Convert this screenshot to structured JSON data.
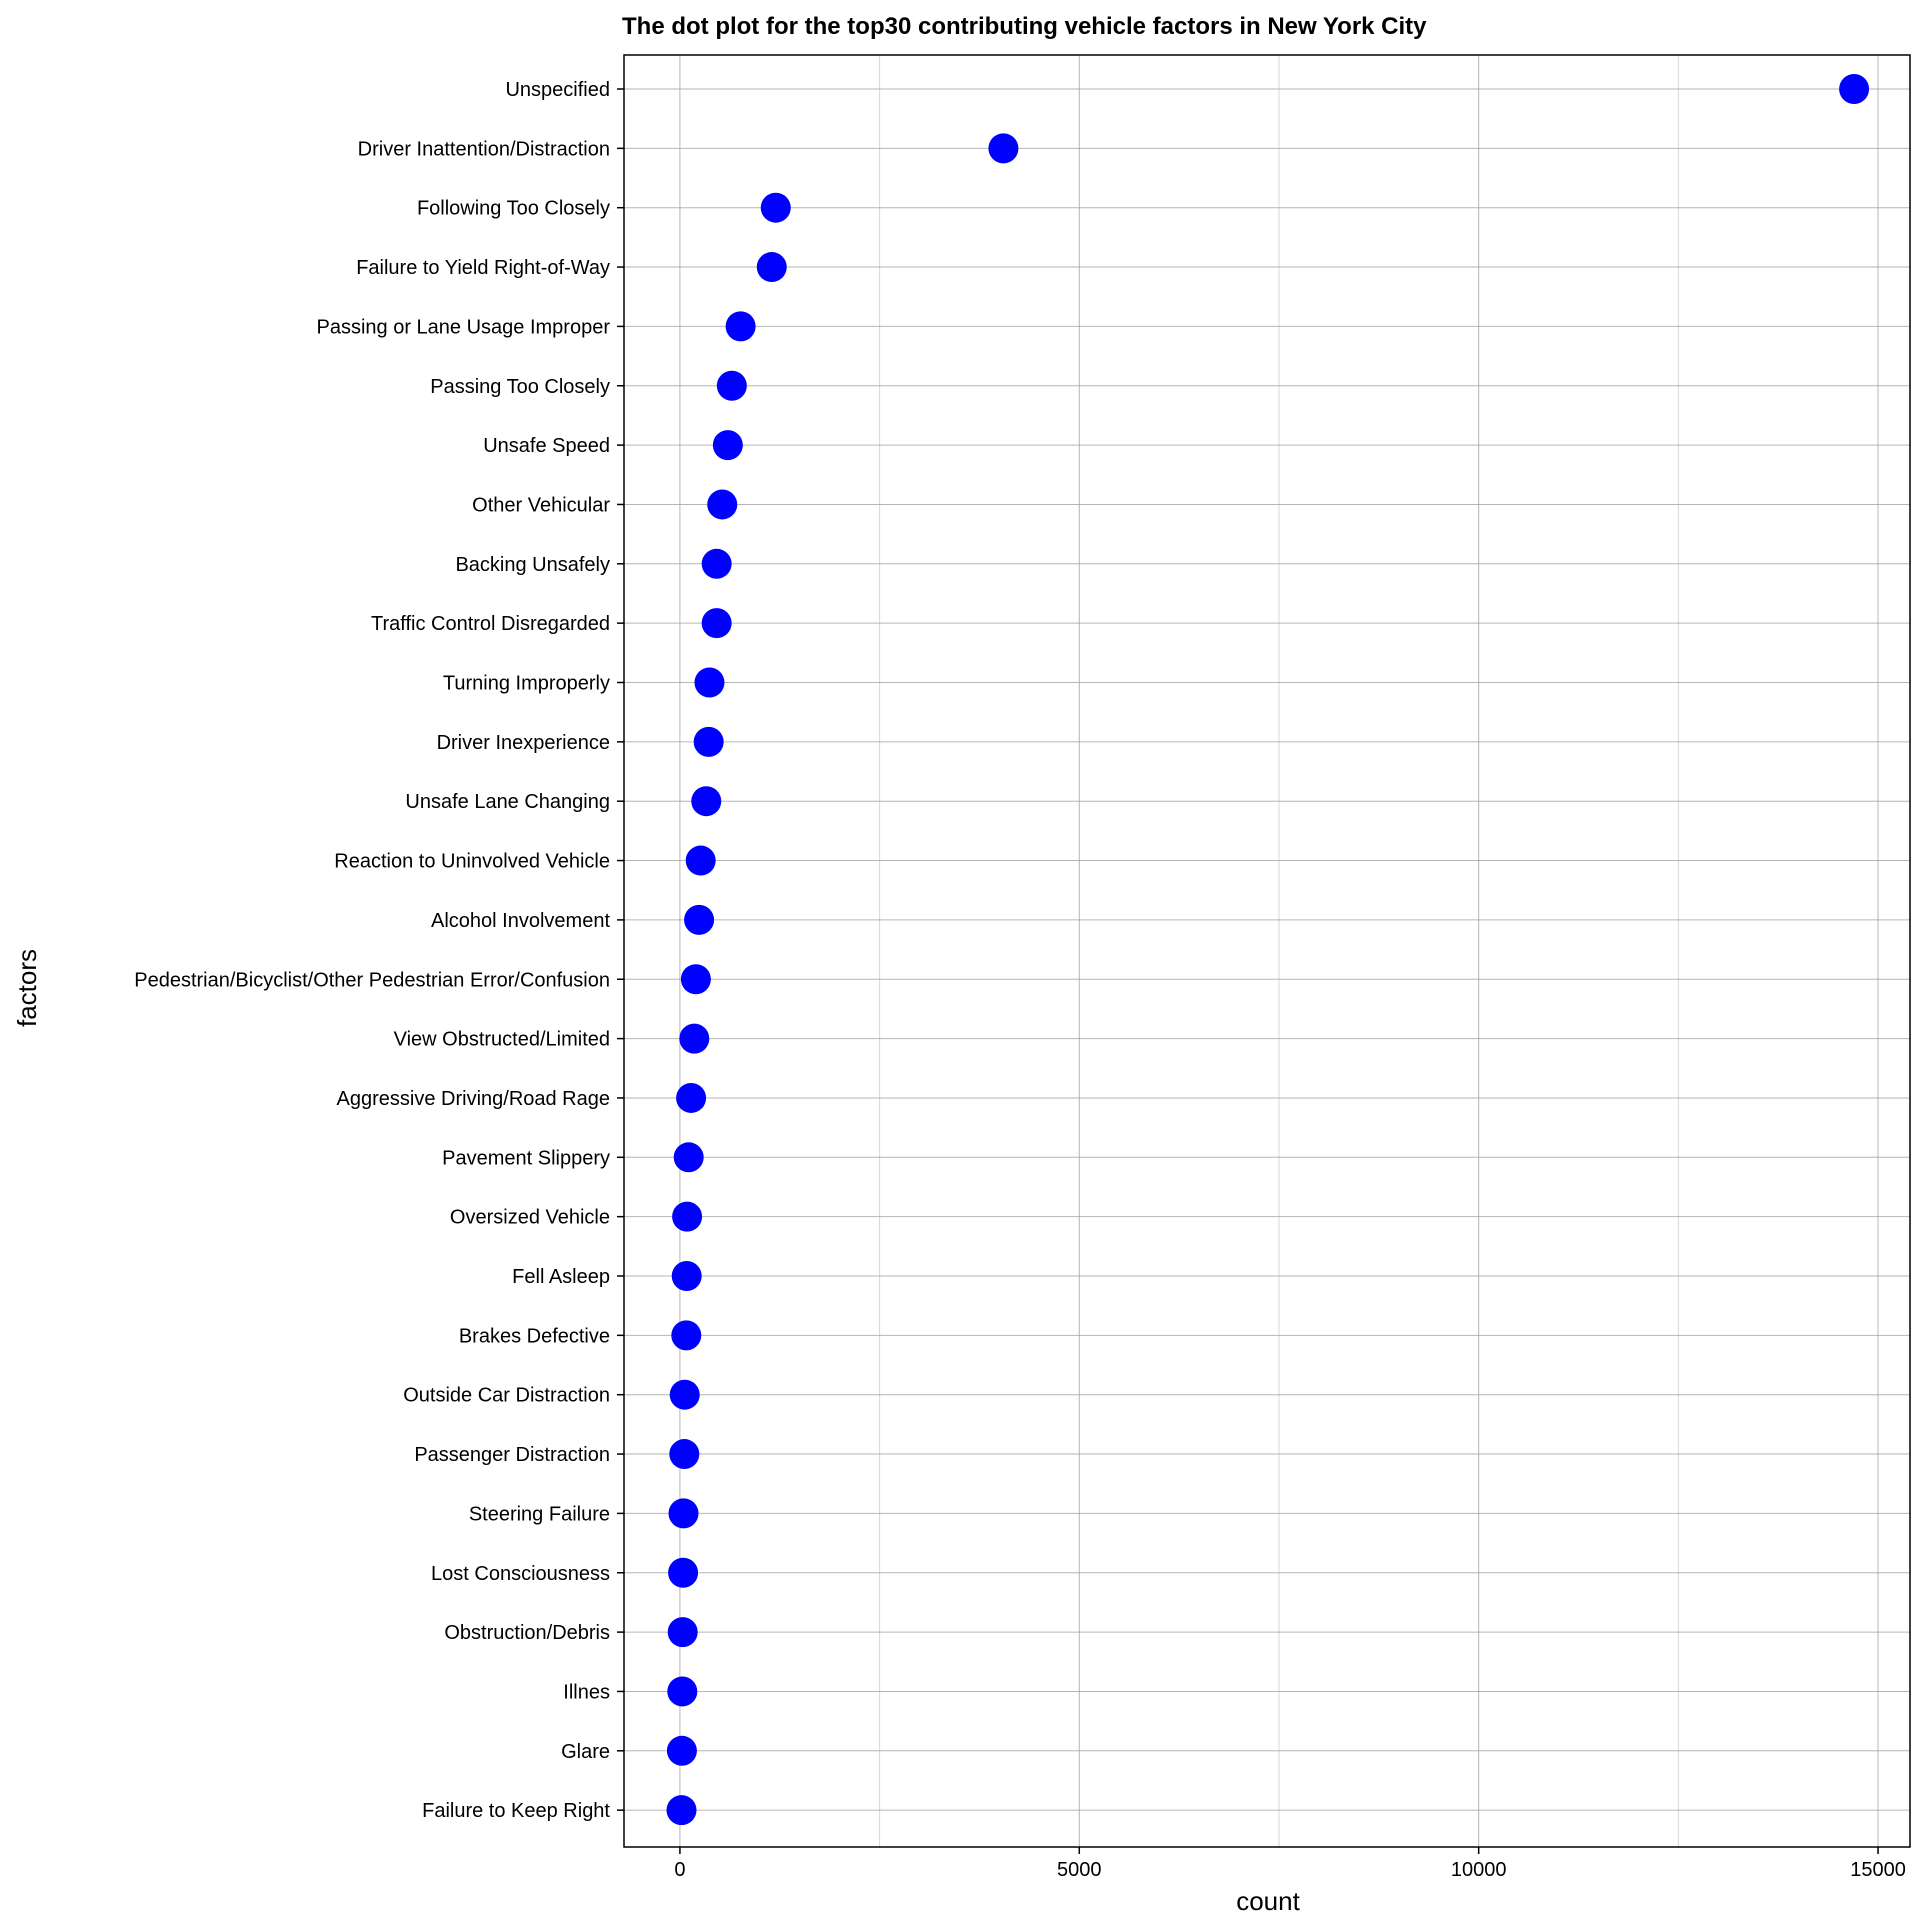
{
  "chart_data": {
    "type": "scatter",
    "title": "The dot plot for the top30 contributing vehicle factors in New York City",
    "xlabel": "count",
    "ylabel": "factors",
    "xlim": [
      -700,
      15400
    ],
    "x_ticks": [
      0,
      5000,
      10000,
      15000
    ],
    "x_tick_labels": [
      "0",
      "5000",
      "10000",
      "15000"
    ],
    "x_minor_ticks": [
      2500,
      7500,
      12500
    ],
    "grid": true,
    "point_color": "#0000ff",
    "categories": [
      "Unspecified",
      "Driver Inattention/Distraction",
      "Following Too Closely",
      "Failure to Yield Right-of-Way",
      "Passing or Lane Usage Improper",
      "Passing Too Closely",
      "Unsafe Speed",
      "Other Vehicular",
      "Backing Unsafely",
      "Traffic Control Disregarded",
      "Turning Improperly",
      "Driver Inexperience",
      "Unsafe Lane Changing",
      "Reaction to Uninvolved Vehicle",
      "Alcohol Involvement",
      "Pedestrian/Bicyclist/Other Pedestrian Error/Confusion",
      "View Obstructed/Limited",
      "Aggressive Driving/Road Rage",
      "Pavement Slippery",
      "Oversized Vehicle",
      "Fell Asleep",
      "Brakes Defective",
      "Outside Car Distraction",
      "Passenger Distraction",
      "Steering Failure",
      "Lost Consciousness",
      "Obstruction/Debris",
      "Illnes",
      "Glare",
      "Failure to Keep Right"
    ],
    "values": [
      14700,
      4050,
      1200,
      1150,
      760,
      650,
      600,
      530,
      460,
      460,
      370,
      360,
      330,
      260,
      240,
      200,
      180,
      140,
      110,
      90,
      85,
      80,
      60,
      55,
      45,
      40,
      35,
      30,
      25,
      20
    ]
  }
}
